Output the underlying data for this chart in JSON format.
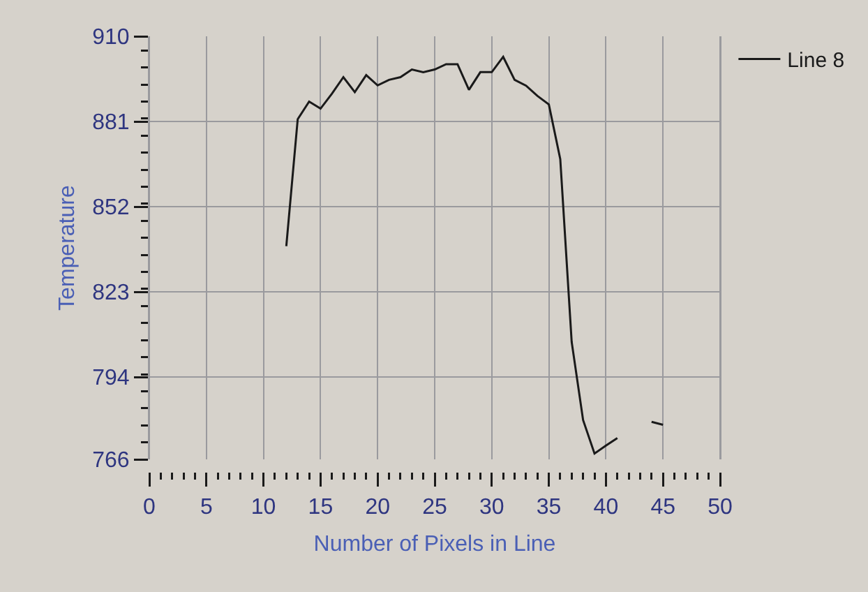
{
  "chart_data": {
    "type": "line",
    "xlabel": "Number of Pixels in Line",
    "ylabel": "Temperature",
    "x": [
      12,
      13,
      14,
      15,
      16,
      17,
      18,
      19,
      20,
      21,
      22,
      23,
      24,
      25,
      26,
      27,
      28,
      29,
      30,
      31,
      32,
      33,
      34,
      35,
      36,
      37,
      38,
      39,
      40,
      41,
      42,
      43,
      44,
      45
    ],
    "series": [
      {
        "name": "Line 8",
        "color": "#1a1a1a",
        "values": [
          838.6,
          881.8,
          887.8,
          885.4,
          890.5,
          896.1,
          891,
          896.8,
          893.3,
          895.2,
          896.1,
          898.7,
          897.8,
          898.7,
          900.5,
          900.5,
          891.8,
          897.8,
          897.8,
          903,
          895.2,
          893.2,
          889.7,
          886.8,
          868.2,
          806,
          779.4,
          768,
          770.7,
          773.3,
          null,
          null,
          778.8,
          777.8
        ]
      }
    ],
    "xlim": [
      0,
      50
    ],
    "xticks": [
      0,
      5,
      10,
      15,
      20,
      25,
      30,
      35,
      40,
      45,
      50
    ],
    "ylim": [
      766,
      910
    ],
    "yticks": [
      766,
      794,
      823,
      852,
      881,
      910
    ],
    "grid": true,
    "legend": "top right",
    "marker": "none",
    "line_style": "solid"
  }
}
